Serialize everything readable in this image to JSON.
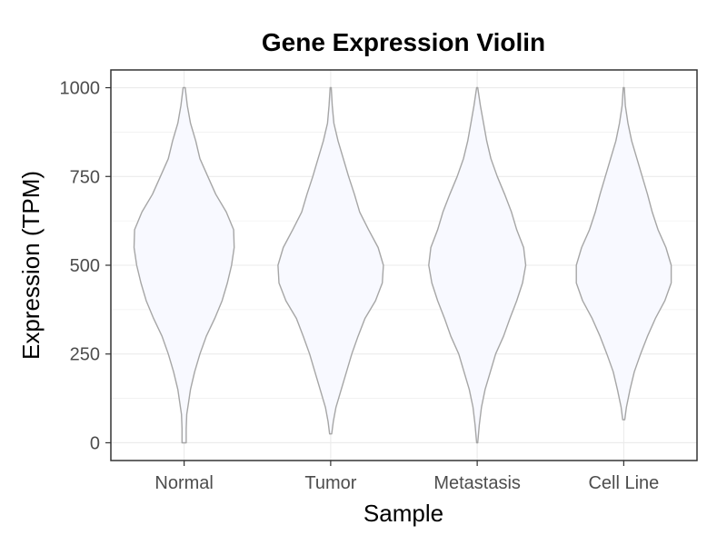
{
  "chart_data": {
    "type": "violin",
    "title": "Gene Expression Violin",
    "xlabel": "Sample",
    "ylabel": "Expression (TPM)",
    "categories": [
      "Normal",
      "Tumor",
      "Metastasis",
      "Cell Line"
    ],
    "ylim": [
      -50,
      1050
    ],
    "yticks": [
      0,
      250,
      500,
      750,
      1000
    ],
    "grid": true,
    "colors": {
      "violin_fill": "#f8f9ff",
      "violin_stroke": "#a6a6a6",
      "grid": "#ebebeb",
      "panel_border": "#333333"
    },
    "series": [
      {
        "category": "Normal",
        "range": [
          0,
          1000
        ],
        "density": [
          [
            0,
            0.04
          ],
          [
            10,
            0.04
          ],
          [
            40,
            0.04
          ],
          [
            80,
            0.05
          ],
          [
            110,
            0.08
          ],
          [
            150,
            0.12
          ],
          [
            200,
            0.2
          ],
          [
            250,
            0.3
          ],
          [
            300,
            0.42
          ],
          [
            350,
            0.58
          ],
          [
            400,
            0.72
          ],
          [
            450,
            0.82
          ],
          [
            500,
            0.9
          ],
          [
            550,
            0.95
          ],
          [
            600,
            0.94
          ],
          [
            650,
            0.8
          ],
          [
            700,
            0.6
          ],
          [
            750,
            0.45
          ],
          [
            800,
            0.3
          ],
          [
            850,
            0.22
          ],
          [
            900,
            0.12
          ],
          [
            950,
            0.06
          ],
          [
            1000,
            0.02
          ]
        ]
      },
      {
        "category": "Tumor",
        "range": [
          25,
          1000
        ],
        "density": [
          [
            25,
            0.02
          ],
          [
            60,
            0.05
          ],
          [
            100,
            0.1
          ],
          [
            150,
            0.2
          ],
          [
            200,
            0.3
          ],
          [
            250,
            0.4
          ],
          [
            300,
            0.52
          ],
          [
            350,
            0.65
          ],
          [
            400,
            0.85
          ],
          [
            450,
            0.98
          ],
          [
            500,
            1.0
          ],
          [
            550,
            0.9
          ],
          [
            600,
            0.72
          ],
          [
            650,
            0.55
          ],
          [
            700,
            0.45
          ],
          [
            750,
            0.34
          ],
          [
            800,
            0.24
          ],
          [
            850,
            0.14
          ],
          [
            900,
            0.06
          ],
          [
            950,
            0.03
          ],
          [
            1000,
            0.01
          ]
        ]
      },
      {
        "category": "Metastasis",
        "range": [
          0,
          1000
        ],
        "density": [
          [
            0,
            0.01
          ],
          [
            50,
            0.04
          ],
          [
            100,
            0.08
          ],
          [
            150,
            0.15
          ],
          [
            200,
            0.25
          ],
          [
            250,
            0.35
          ],
          [
            300,
            0.5
          ],
          [
            350,
            0.62
          ],
          [
            400,
            0.75
          ],
          [
            450,
            0.86
          ],
          [
            500,
            0.92
          ],
          [
            550,
            0.88
          ],
          [
            600,
            0.75
          ],
          [
            650,
            0.65
          ],
          [
            700,
            0.52
          ],
          [
            750,
            0.38
          ],
          [
            800,
            0.26
          ],
          [
            850,
            0.18
          ],
          [
            900,
            0.12
          ],
          [
            950,
            0.06
          ],
          [
            1000,
            0.01
          ]
        ]
      },
      {
        "category": "Cell Line",
        "range": [
          65,
          1000
        ],
        "density": [
          [
            65,
            0.02
          ],
          [
            100,
            0.05
          ],
          [
            150,
            0.12
          ],
          [
            200,
            0.2
          ],
          [
            250,
            0.32
          ],
          [
            300,
            0.45
          ],
          [
            350,
            0.6
          ],
          [
            400,
            0.78
          ],
          [
            450,
            0.9
          ],
          [
            500,
            0.9
          ],
          [
            550,
            0.8
          ],
          [
            600,
            0.65
          ],
          [
            650,
            0.54
          ],
          [
            700,
            0.45
          ],
          [
            750,
            0.35
          ],
          [
            800,
            0.25
          ],
          [
            850,
            0.15
          ],
          [
            900,
            0.08
          ],
          [
            950,
            0.03
          ],
          [
            1000,
            0.01
          ]
        ]
      }
    ]
  }
}
